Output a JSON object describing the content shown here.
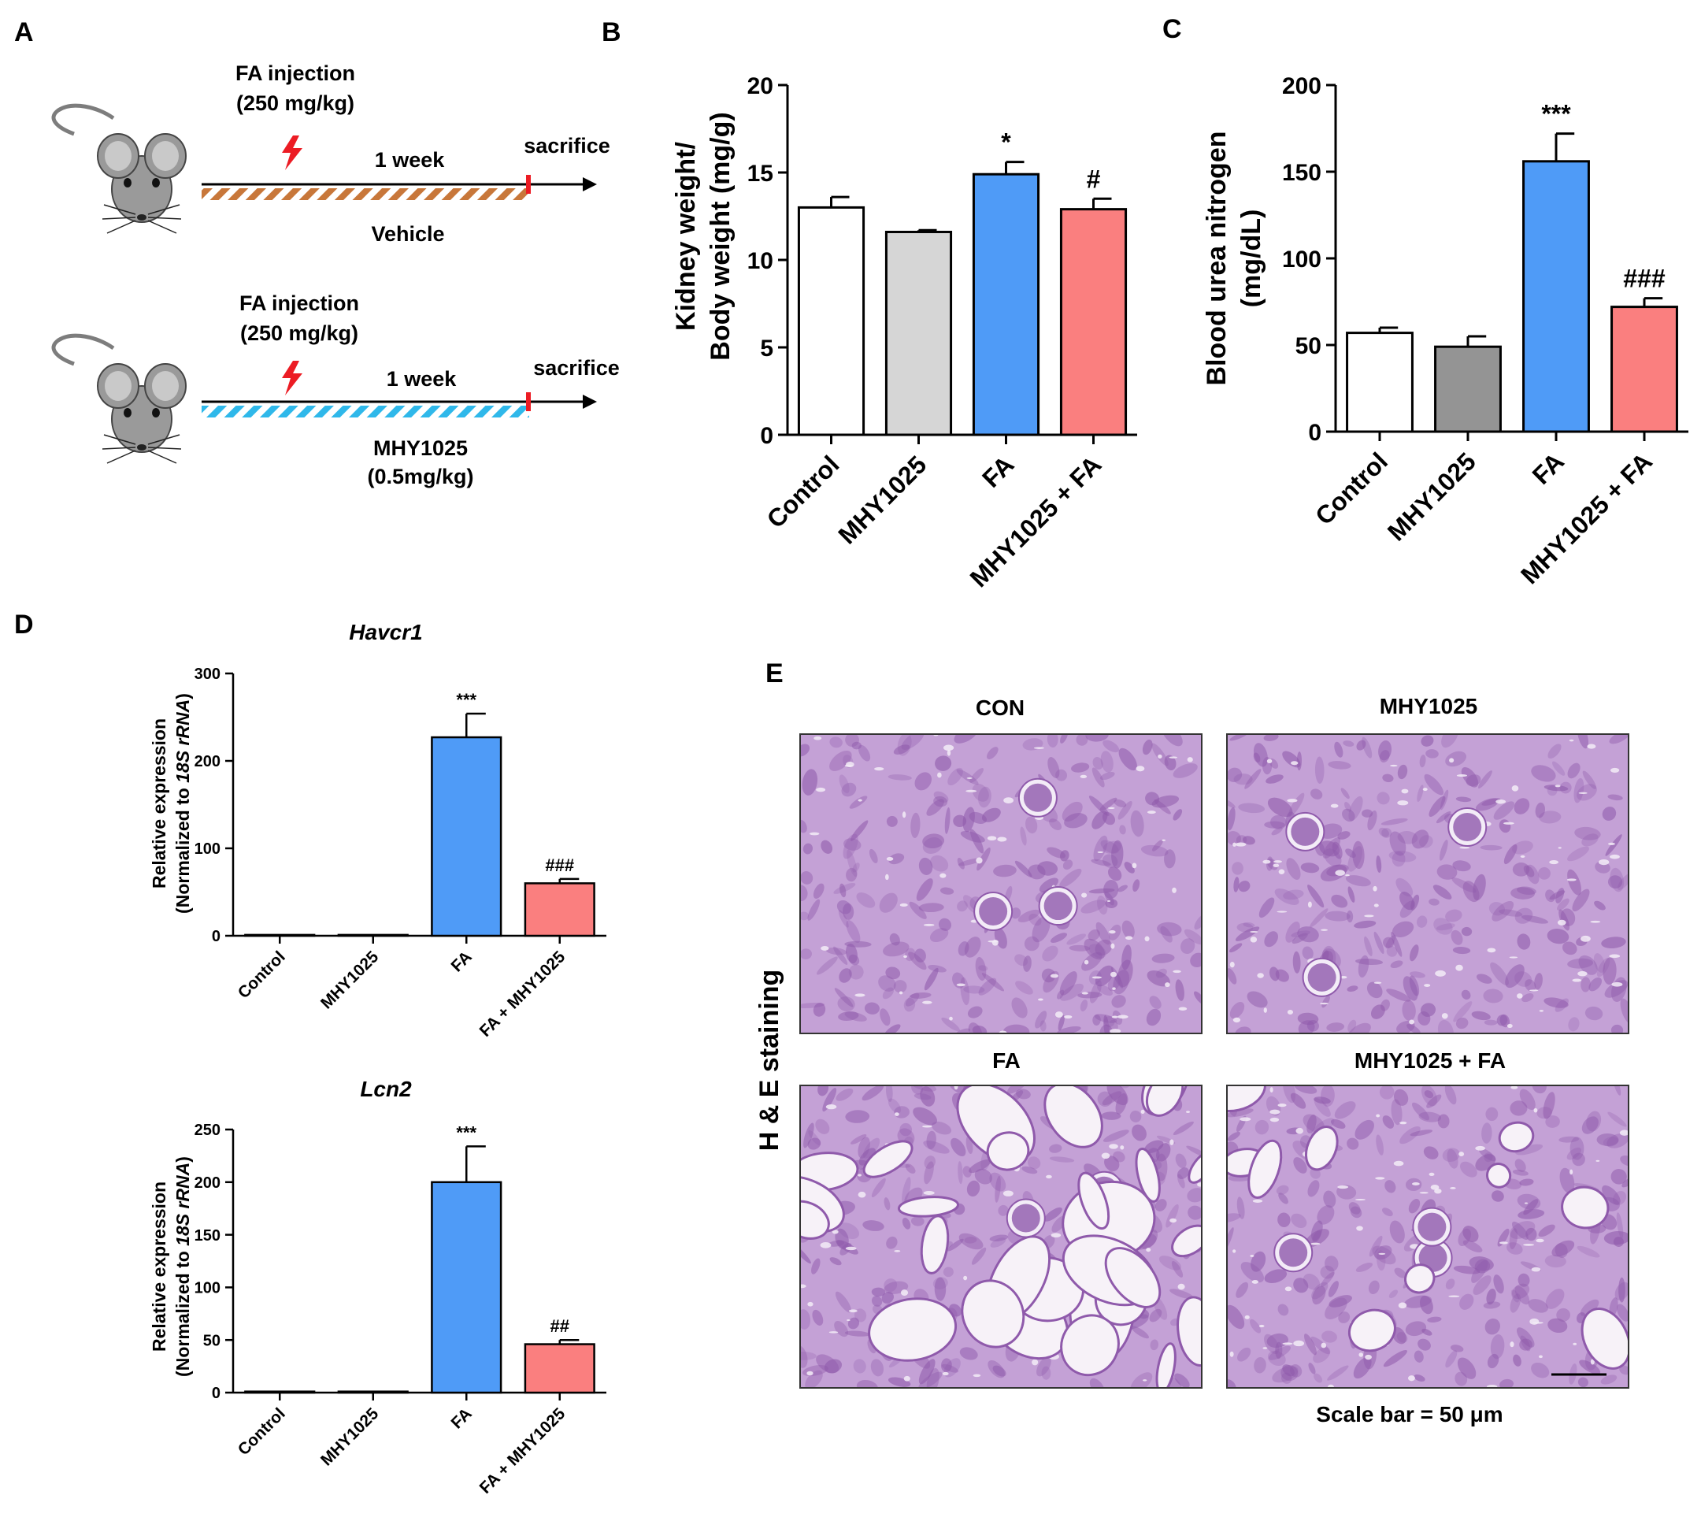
{
  "colors": {
    "control": "#ffffff",
    "mhy_light": "#d6d6d6",
    "mhy_dark": "#949494",
    "fa": "#4f9bf7",
    "mhy_fa": "#fa7f7f",
    "vehicle_hatch": "#c8773a",
    "mhy_hatch": "#2fb8ea",
    "bolt": "#ec1c24",
    "tissue_base": "#c4a1d6",
    "tissue_stain": "#8f5aab",
    "lumen": "#f3ecf7"
  },
  "panel_a": {
    "letter": "A",
    "vehicle": {
      "injection_label": "FA injection",
      "dose_label": "(250 mg/kg)",
      "duration_label": "1 week",
      "endpoint_label": "sacrifice",
      "treatment_label": "Vehicle",
      "treatment_dose": ""
    },
    "mhy": {
      "injection_label": "FA injection",
      "dose_label": "(250 mg/kg)",
      "duration_label": "1 week",
      "endpoint_label": "sacrifice",
      "treatment_label": "MHY1025",
      "treatment_dose": "(0.5mg/kg)"
    }
  },
  "panel_b": {
    "letter": "B",
    "ylabel_line1": "Kidney weight/",
    "ylabel_line2": "Body weight (mg/g)",
    "chart_data": {
      "type": "bar",
      "categories": [
        "Control",
        "MHY1025",
        "FA",
        "MHY1025 + FA"
      ],
      "values": [
        13.0,
        11.6,
        14.9,
        12.9
      ],
      "errors": [
        0.6,
        0.1,
        0.7,
        0.6
      ],
      "significance": [
        "",
        "",
        "*",
        "#"
      ],
      "ylim": [
        0,
        20
      ],
      "yticks": [
        0,
        5,
        10,
        15,
        20
      ],
      "fill_keys": [
        "control",
        "mhy_light",
        "fa",
        "mhy_fa"
      ]
    }
  },
  "panel_c": {
    "letter": "C",
    "ylabel_line1": "Blood urea nitrogen",
    "ylabel_line2": "(mg/dL)",
    "chart_data": {
      "type": "bar",
      "categories": [
        "Control",
        "MHY1025",
        "FA",
        "MHY1025 + FA"
      ],
      "values": [
        57,
        49,
        156,
        72
      ],
      "errors": [
        3,
        6,
        16,
        5
      ],
      "significance": [
        "",
        "",
        "***",
        "###"
      ],
      "ylim": [
        0,
        200
      ],
      "yticks": [
        0,
        50,
        100,
        150,
        200
      ],
      "fill_keys": [
        "control",
        "mhy_dark",
        "fa",
        "mhy_fa"
      ]
    }
  },
  "panel_d": {
    "letter": "D",
    "ylabel_line1": "Relative expression",
    "ylabel_prefix": "(Normalized to ",
    "ylabel_italic": "18S rRNA",
    "ylabel_suffix": ")",
    "havcr1": {
      "title": "Havcr1",
      "chart_data": {
        "type": "bar",
        "categories": [
          "Control",
          "MHY1025",
          "FA",
          "FA + MHY1025"
        ],
        "values": [
          1,
          1,
          227,
          60
        ],
        "errors": [
          0,
          0,
          27,
          5
        ],
        "significance": [
          "",
          "",
          "***",
          "###"
        ],
        "ylim": [
          0,
          300
        ],
        "yticks": [
          0,
          100,
          200,
          300
        ],
        "fill_keys": [
          "control",
          "control",
          "fa",
          "mhy_fa"
        ]
      }
    },
    "lcn2": {
      "title": "Lcn2",
      "chart_data": {
        "type": "bar",
        "categories": [
          "Control",
          "MHY1025",
          "FA",
          "FA + MHY1025"
        ],
        "values": [
          1,
          1,
          200,
          46
        ],
        "errors": [
          0,
          0,
          34,
          4
        ],
        "significance": [
          "",
          "",
          "***",
          "##"
        ],
        "ylim": [
          0,
          250
        ],
        "yticks": [
          0,
          50,
          100,
          150,
          200,
          250
        ],
        "fill_keys": [
          "control",
          "control",
          "fa",
          "mhy_fa"
        ]
      }
    }
  },
  "panel_e": {
    "letter": "E",
    "side_label": "H & E staining",
    "titles": [
      "CON",
      "MHY1025",
      "FA",
      "MHY1025 + FA"
    ],
    "scale_label": "Scale bar = 50 μm"
  }
}
